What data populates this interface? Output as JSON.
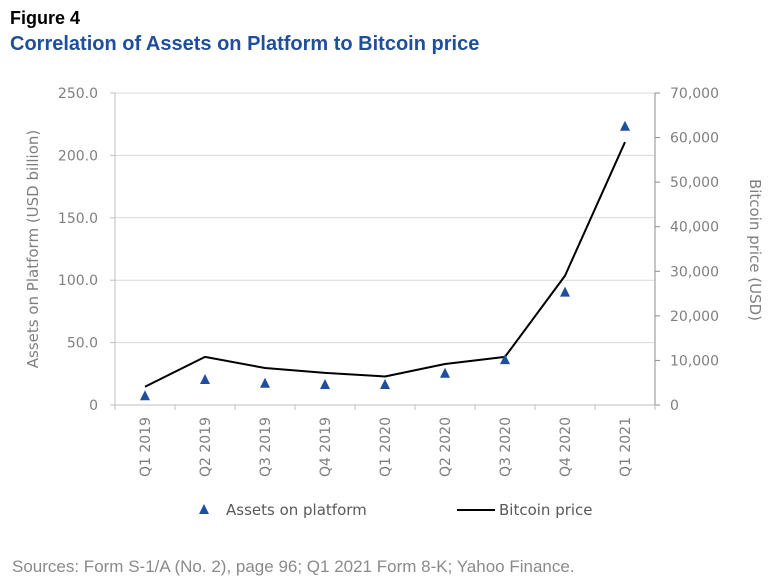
{
  "figure": {
    "label": "Figure 4",
    "title": "Correlation of Assets on Platform to Bitcoin price",
    "title_color": "#1f4e9c"
  },
  "source_note": "Sources: Form S-1/A (No. 2), page 96; Q1 2021 Form 8-K; Yahoo Finance.",
  "chart_data": {
    "type": "line",
    "title": "Correlation of Assets on Platform to Bitcoin price",
    "categories": [
      "Q1 2019",
      "Q2 2019",
      "Q3 2019",
      "Q4 2019",
      "Q1 2020",
      "Q2 2020",
      "Q3 2020",
      "Q4 2020",
      "Q1 2021"
    ],
    "series": [
      {
        "name": "Assets on platform",
        "axis": "left",
        "marker": "triangle",
        "color": "#1f4e9c",
        "values": [
          7,
          20,
          17,
          16,
          16,
          25,
          36,
          90,
          223
        ]
      },
      {
        "name": "Bitcoin price",
        "axis": "right",
        "marker": "line",
        "color": "#000000",
        "values": [
          4100,
          10800,
          8300,
          7200,
          6400,
          9200,
          10800,
          29000,
          59000
        ]
      }
    ],
    "y_left": {
      "label": "Assets on Platform (USD billion)",
      "ylim": [
        0,
        250
      ],
      "ticks": [
        0,
        50,
        100,
        150,
        200,
        250
      ],
      "tick_labels": [
        "0",
        "50.0",
        "100.0",
        "150.0",
        "200.0",
        "250.0"
      ]
    },
    "y_right": {
      "label": "Bitcoin price (USD)",
      "ylim": [
        0,
        70000
      ],
      "ticks": [
        0,
        10000,
        20000,
        30000,
        40000,
        50000,
        60000,
        70000
      ],
      "tick_labels": [
        "0",
        "10,000",
        "20,000",
        "30,000",
        "40,000",
        "50,000",
        "60,000",
        "70,000"
      ]
    },
    "grid": true,
    "legend": {
      "position": "bottom"
    }
  }
}
